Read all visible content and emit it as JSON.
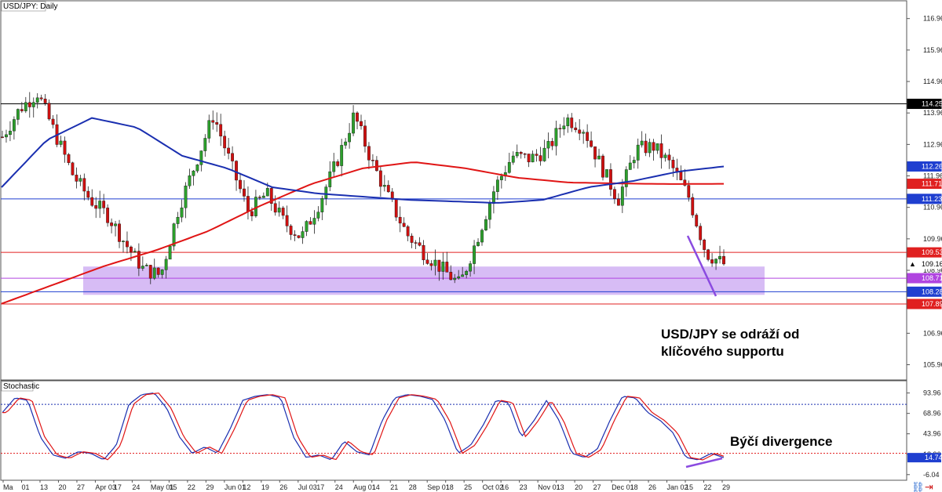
{
  "main_chart": {
    "symbol_label": "USD/JPY: Daily",
    "y_ticks": [
      "116.96",
      "115.96",
      "114.96",
      "113.96",
      "112.96",
      "111.96",
      "110.96",
      "109.96",
      "108.96",
      "107.96",
      "106.96",
      "105.96"
    ],
    "y_tick_values": [
      116.96,
      115.96,
      114.96,
      113.96,
      112.96,
      111.96,
      110.96,
      109.96,
      108.96,
      107.96,
      106.96,
      105.96
    ],
    "ylim": [
      105.5,
      117.5
    ],
    "price_tags": [
      {
        "label": "114.25",
        "value": 114.25,
        "bg": "#000000",
        "fg": "#ffffff"
      },
      {
        "label": "112.26",
        "value": 112.26,
        "bg": "#1f3fd0",
        "fg": "#ffffff"
      },
      {
        "label": "111.71",
        "value": 111.71,
        "bg": "#e02020",
        "fg": "#ffffff"
      },
      {
        "label": "111.23",
        "value": 111.23,
        "bg": "#1f3fd0",
        "fg": "#ffffff"
      },
      {
        "label": "109.53",
        "value": 109.53,
        "bg": "#e02020",
        "fg": "#ffffff"
      },
      {
        "label": "109.16",
        "value": 109.16,
        "bg": "#ffffff",
        "fg": "#000000"
      },
      {
        "label": "108.71",
        "value": 108.71,
        "bg": "#b044e0",
        "fg": "#ffffff"
      },
      {
        "label": "108.28",
        "value": 108.28,
        "bg": "#1f3fd0",
        "fg": "#ffffff"
      },
      {
        "label": "107.89",
        "value": 107.89,
        "bg": "#e02020",
        "fg": "#ffffff"
      }
    ],
    "horizontal_lines": [
      {
        "value": 114.25,
        "color": "#000000"
      },
      {
        "value": 111.23,
        "color": "#1f3fd0"
      },
      {
        "value": 109.53,
        "color": "#e02020"
      },
      {
        "value": 108.71,
        "color": "#b044e0"
      },
      {
        "value": 108.28,
        "color": "#1f3fd0"
      },
      {
        "value": 107.89,
        "color": "#e02020"
      }
    ],
    "support_zone": {
      "low": 108.18,
      "high": 109.08,
      "color": "#c9a6f2"
    },
    "annotation": [
      "USD/JPY se odráží od",
      "klíčového supportu"
    ],
    "colors": {
      "bull": "#2ca02c",
      "bear": "#d01010",
      "ma_fast": "#1a2fb0",
      "ma_slow": "#e01515",
      "divergence": "#8a4be0"
    }
  },
  "stochastic": {
    "label": "Stochastic",
    "y_ticks": [
      "93.96",
      "68.96",
      "43.96",
      "18.96",
      "-6.04"
    ],
    "y_tick_values": [
      93.96,
      68.96,
      43.96,
      18.96,
      -6.04
    ],
    "ylim": [
      -12,
      108
    ],
    "levels": [
      80,
      20
    ],
    "current_tag": {
      "label": "14.74",
      "value": 14.74
    },
    "annotation": "Býčí divergence"
  },
  "x_axis": {
    "labels": [
      "Ma",
      "01",
      "13",
      "20",
      "27",
      "Apr 03",
      "17",
      "24",
      "May 01",
      "15",
      "22",
      "29",
      "Jun 01",
      "12",
      "19",
      "26",
      "Jul 03",
      "17",
      "24",
      "Aug 01",
      "14",
      "21",
      "28",
      "Sep 01",
      "18",
      "25",
      "Oct 02",
      "16",
      "23",
      "Nov 01",
      "13",
      "20",
      "27",
      "Dec 01",
      "18",
      "26",
      "Jan 02",
      "15",
      "22",
      "29"
    ]
  },
  "chart_data": {
    "type": "candlestick",
    "title": "USD/JPY: Daily",
    "ylim": [
      105.5,
      117.5
    ],
    "series": [
      {
        "name": "USD/JPY",
        "approx_closes": [
          113.2,
          114.1,
          114.6,
          113.3,
          112.0,
          111.2,
          110.7,
          109.8,
          109.0,
          108.8,
          110.9,
          112.4,
          113.9,
          112.3,
          110.8,
          111.4,
          110.5,
          110.0,
          111.1,
          112.4,
          113.9,
          112.4,
          111.2,
          110.1,
          109.5,
          109.0,
          108.5,
          110.0,
          111.6,
          112.6,
          112.5,
          112.8,
          113.8,
          113.5,
          112.3,
          111.2,
          112.8,
          112.9,
          112.3,
          111.3,
          109.5,
          109.16
        ]
      },
      {
        "name": "MA fast",
        "approx_values": [
          111.6,
          113.1,
          113.8,
          113.5,
          112.6,
          112.2,
          111.6,
          111.4,
          111.3,
          111.2,
          111.15,
          111.1,
          111.2,
          111.6,
          111.8,
          112.1,
          112.26
        ]
      },
      {
        "name": "MA slow",
        "approx_values": [
          107.9,
          108.5,
          109.1,
          109.6,
          110.2,
          111.0,
          111.7,
          112.2,
          112.4,
          112.2,
          111.9,
          111.75,
          111.72,
          111.7,
          111.71
        ]
      }
    ],
    "levels": [
      114.25,
      111.23,
      109.53,
      108.71,
      108.28,
      107.89
    ],
    "last_price": 109.16,
    "stochastic_levels": [
      80,
      20
    ],
    "stochastic_last": 14.74
  }
}
